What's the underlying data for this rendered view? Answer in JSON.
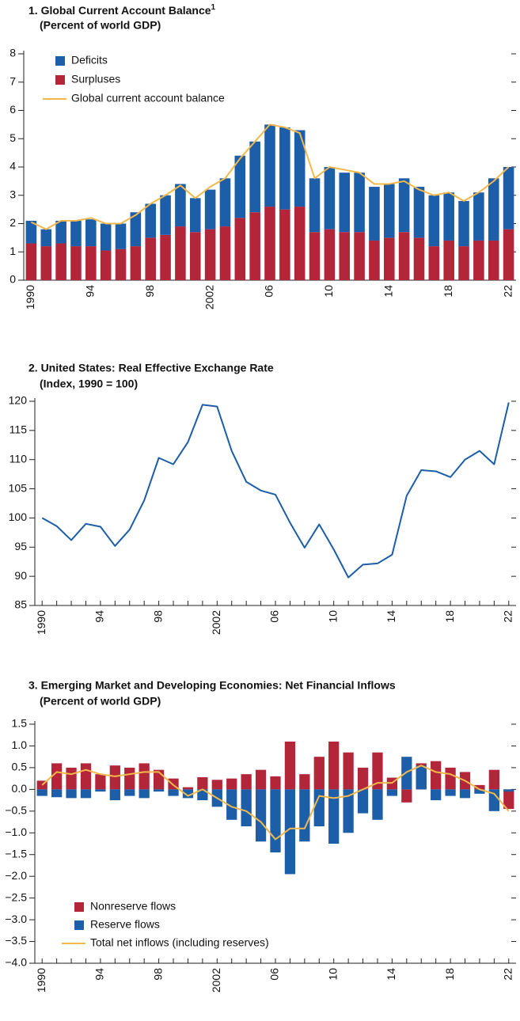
{
  "chart_data": [
    {
      "type": "bar",
      "stacked": true,
      "title": "1. Global Current Account Balance",
      "title_note": "1",
      "subtitle": "(Percent of world GDP)",
      "categories": [
        "1990",
        null,
        null,
        null,
        "94",
        null,
        null,
        null,
        "98",
        null,
        null,
        null,
        "2002",
        null,
        null,
        null,
        "06",
        null,
        null,
        null,
        "10",
        null,
        null,
        null,
        "14",
        null,
        null,
        null,
        "18",
        null,
        null,
        null,
        "22"
      ],
      "series": [
        {
          "name": "Surpluses",
          "color": "#b3263a",
          "values": [
            1.3,
            1.2,
            1.3,
            1.2,
            1.2,
            1.05,
            1.1,
            1.2,
            1.5,
            1.6,
            1.9,
            1.7,
            1.8,
            1.9,
            2.2,
            2.4,
            2.6,
            2.5,
            2.6,
            1.7,
            1.8,
            1.7,
            1.7,
            1.4,
            1.5,
            1.7,
            1.5,
            1.2,
            1.4,
            1.2,
            1.4,
            1.4,
            1.8
          ]
        },
        {
          "name": "Deficits",
          "color": "#1c5ea8",
          "values": [
            0.8,
            0.6,
            0.8,
            0.9,
            0.95,
            0.95,
            0.9,
            1.2,
            1.2,
            1.4,
            1.5,
            1.2,
            1.4,
            1.7,
            2.2,
            2.5,
            2.9,
            2.9,
            2.7,
            1.9,
            2.2,
            2.1,
            2.1,
            1.9,
            1.9,
            1.9,
            1.8,
            1.8,
            1.7,
            1.6,
            1.7,
            2.2,
            2.2
          ]
        },
        {
          "name": "Global current account balance",
          "type": "line",
          "color": "#f2b84b",
          "values": [
            2.05,
            1.8,
            2.1,
            2.1,
            2.2,
            2.0,
            2.0,
            2.3,
            2.7,
            3.0,
            3.35,
            2.9,
            3.3,
            3.6,
            4.3,
            4.9,
            5.5,
            5.4,
            5.2,
            3.6,
            4.0,
            3.9,
            3.8,
            3.4,
            3.4,
            3.5,
            3.2,
            3.0,
            3.1,
            2.8,
            3.1,
            3.5,
            4.0
          ]
        }
      ],
      "ylim": [
        0,
        8
      ],
      "yticks": [
        0,
        1,
        2,
        3,
        4,
        5,
        6,
        7,
        8
      ],
      "legend": "upper left"
    },
    {
      "type": "line",
      "title": "2. United States: Real Effective Exchange Rate",
      "subtitle": "(Index, 1990 = 100)",
      "categories": [
        "1990",
        null,
        null,
        null,
        "94",
        null,
        null,
        null,
        "98",
        null,
        null,
        null,
        "2002",
        null,
        null,
        null,
        "06",
        null,
        null,
        null,
        "10",
        null,
        null,
        null,
        "14",
        null,
        null,
        null,
        "18",
        null,
        null,
        null,
        "22"
      ],
      "series": [
        {
          "color": "#1c5ea8",
          "values": [
            100,
            98.6,
            96.2,
            99,
            98.5,
            95.2,
            98,
            103,
            110.3,
            109.2,
            113,
            119.4,
            119.1,
            111.5,
            106.2,
            104.7,
            104,
            99.2,
            94.9,
            98.9,
            94.6,
            89.8,
            92,
            92.2,
            93.7,
            103.8,
            108.2,
            108,
            107,
            110,
            111.5,
            109.2,
            119.8
          ]
        }
      ],
      "ylim": [
        85,
        120
      ],
      "yticks": [
        85,
        90,
        95,
        100,
        105,
        110,
        115,
        120
      ]
    },
    {
      "type": "bar",
      "stacked": false,
      "title": "3. Emerging Market and Developing Economies: Net Financial Inflows",
      "subtitle": "(Percent of world GDP)",
      "categories": [
        "1990",
        null,
        null,
        null,
        "94",
        null,
        null,
        null,
        "98",
        null,
        null,
        null,
        "2002",
        null,
        null,
        null,
        "06",
        null,
        null,
        null,
        "10",
        null,
        null,
        null,
        "14",
        null,
        null,
        null,
        "18",
        null,
        null,
        null,
        "22"
      ],
      "series": [
        {
          "name": "Nonreserve flows",
          "color": "#b3263a",
          "values": [
            0.2,
            0.6,
            0.5,
            0.6,
            0.35,
            0.55,
            0.5,
            0.6,
            0.45,
            0.25,
            0.05,
            0.28,
            0.22,
            0.25,
            0.35,
            0.45,
            0.3,
            1.1,
            0.35,
            0.75,
            1.1,
            0.85,
            0.5,
            0.85,
            0.27,
            -0.3,
            0.6,
            0.65,
            0.5,
            0.4,
            0.1,
            0.45,
            -0.45
          ]
        },
        {
          "name": "Reserve flows",
          "color": "#1c5ea8",
          "values": [
            -0.15,
            -0.18,
            -0.2,
            -0.2,
            -0.05,
            -0.25,
            -0.15,
            -0.2,
            -0.05,
            -0.15,
            -0.2,
            -0.25,
            -0.4,
            -0.7,
            -0.85,
            -1.2,
            -1.45,
            -1.95,
            -1.2,
            -0.85,
            -1.25,
            -1.0,
            -0.55,
            -0.7,
            -0.15,
            0.75,
            0.55,
            -0.25,
            -0.15,
            -0.2,
            -0.1,
            -0.5,
            -0.05
          ]
        },
        {
          "name": "Total net inflows (including reserves)",
          "type": "line",
          "color": "#f2b84b",
          "values": [
            0.1,
            0.4,
            0.35,
            0.45,
            0.35,
            0.3,
            0.35,
            0.4,
            0.4,
            0.1,
            -0.15,
            0.0,
            -0.2,
            -0.4,
            -0.5,
            -0.75,
            -1.15,
            -0.9,
            -0.9,
            -0.15,
            -0.2,
            -0.15,
            0.0,
            0.15,
            0.15,
            0.4,
            0.55,
            0.4,
            0.35,
            0.2,
            0.0,
            -0.1,
            -0.5
          ]
        }
      ],
      "ylim": [
        -4,
        1.5
      ],
      "yticks": [
        {
          "value": -4,
          "label": "−4.0"
        },
        {
          "value": -3.5,
          "label": "−3.5"
        },
        {
          "value": -3,
          "label": "−3.0"
        },
        {
          "value": -2.5,
          "label": "−2.5"
        },
        {
          "value": -2,
          "label": "−2.0"
        },
        {
          "value": -1.5,
          "label": "−1.5"
        },
        {
          "value": -1,
          "label": "−1.0"
        },
        {
          "value": -0.5,
          "label": "−0.5"
        },
        {
          "value": 0,
          "label": "0.0"
        },
        0.5,
        {
          "value": 1,
          "label": "1.0"
        },
        1.5
      ],
      "legend": "lower left"
    }
  ]
}
